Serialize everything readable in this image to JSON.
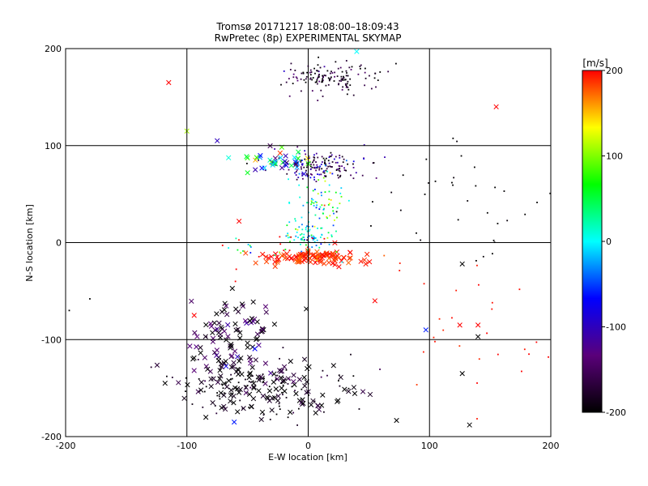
{
  "chart_data": {
    "type": "scatter",
    "title": "Tromsø 20171217 18:08:00–18:09:43",
    "subtitle": "RwPretec (8p) EXPERIMENTAL SKYMAP",
    "xlabel": "E-W location [km]",
    "ylabel": "N-S location [km]",
    "xlim": [
      -200,
      200
    ],
    "ylim": [
      -200,
      200
    ],
    "x_ticks": [
      "-200",
      "-100",
      "0",
      "100",
      "200"
    ],
    "y_ticks": [
      "-200",
      "-100",
      "0",
      "100",
      "200"
    ],
    "x_tick_values": [
      -200,
      -100,
      0,
      100,
      200
    ],
    "y_tick_values": [
      -200,
      -100,
      0,
      100,
      200
    ],
    "grid": true,
    "colorbar": {
      "label": "[m/s]",
      "min": -200,
      "max": 200,
      "ticks": [
        "200",
        "100",
        "0",
        "-100",
        "-200"
      ],
      "tick_values": [
        200,
        100,
        0,
        -100,
        -200
      ],
      "colors": [
        "#000000",
        "#5a007a",
        "#0000ff",
        "#00ffff",
        "#00ff00",
        "#ffff00",
        "#ff0000"
      ]
    },
    "markers": {
      "dot": "meteor detection (small)",
      "x": "meteor detection (large)"
    },
    "clusters": [
      {
        "cx": 15,
        "cy": 170,
        "sx": 22,
        "sy": 8,
        "n": 140,
        "v": -180,
        "vs": 30,
        "marker": "dot"
      },
      {
        "cx": 10,
        "cy": 78,
        "sx": 18,
        "sy": 7,
        "n": 160,
        "v": -150,
        "vs": 45,
        "marker": "dot"
      },
      {
        "cx": -20,
        "cy": 85,
        "sx": 18,
        "sy": 6,
        "n": 40,
        "v": -40,
        "vs": 80,
        "marker": "x"
      },
      {
        "cx": 10,
        "cy": 40,
        "sx": 12,
        "sy": 18,
        "n": 80,
        "v": 20,
        "vs": 60,
        "marker": "dot"
      },
      {
        "cx": 0,
        "cy": 5,
        "sx": 8,
        "sy": 10,
        "n": 60,
        "v": 0,
        "vs": 30,
        "marker": "dot"
      },
      {
        "cx": 5,
        "cy": -16,
        "sx": 22,
        "sy": 4,
        "n": 110,
        "v": 190,
        "vs": 10,
        "marker": "x"
      },
      {
        "cx": -25,
        "cy": -5,
        "sx": 30,
        "sy": 12,
        "n": 40,
        "v": 100,
        "vs": 110,
        "marker": "dot"
      },
      {
        "cx": -60,
        "cy": -100,
        "sx": 18,
        "sy": 25,
        "n": 110,
        "v": -170,
        "vs": 40,
        "marker": "x"
      },
      {
        "cx": -35,
        "cy": -150,
        "sx": 35,
        "sy": 15,
        "n": 120,
        "v": -190,
        "vs": 20,
        "marker": "x"
      },
      {
        "cx": -40,
        "cy": -150,
        "sx": 40,
        "sy": 15,
        "n": 90,
        "v": -190,
        "vs": 20,
        "marker": "dot"
      },
      {
        "cx": 120,
        "cy": 50,
        "sx": 50,
        "sy": 30,
        "n": 40,
        "v": -200,
        "vs": 5,
        "marker": "dot"
      },
      {
        "cx": 130,
        "cy": -80,
        "sx": 35,
        "sy": 35,
        "n": 25,
        "v": 195,
        "vs": 5,
        "marker": "dot"
      }
    ],
    "extra_points": [
      {
        "x": -115,
        "y": 165,
        "v": 200,
        "marker": "x"
      },
      {
        "x": 155,
        "y": 140,
        "v": 200,
        "marker": "x"
      },
      {
        "x": -100,
        "y": 115,
        "v": 110,
        "marker": "x"
      },
      {
        "x": -75,
        "y": 105,
        "v": -100,
        "marker": "x"
      },
      {
        "x": -50,
        "y": 72,
        "v": 60,
        "marker": "x"
      },
      {
        "x": -57,
        "y": 22,
        "v": 200,
        "marker": "x"
      },
      {
        "x": -94,
        "y": -75,
        "v": 200,
        "marker": "x"
      },
      {
        "x": 97,
        "y": -90,
        "v": -60,
        "marker": "x"
      },
      {
        "x": -61,
        "y": -185,
        "v": -60,
        "marker": "x"
      },
      {
        "x": -95,
        "y": -120,
        "v": -200,
        "marker": "x"
      },
      {
        "x": -118,
        "y": -145,
        "v": -200,
        "marker": "x"
      },
      {
        "x": 125,
        "y": -85,
        "v": 200,
        "marker": "x"
      },
      {
        "x": 140,
        "y": -85,
        "v": 200,
        "marker": "x"
      },
      {
        "x": 140,
        "y": -97,
        "v": -200,
        "marker": "x"
      },
      {
        "x": 127,
        "y": -135,
        "v": -200,
        "marker": "x"
      },
      {
        "x": 133,
        "y": -188,
        "v": -200,
        "marker": "x"
      },
      {
        "x": 127,
        "y": -22,
        "v": -200,
        "marker": "x"
      },
      {
        "x": 55,
        "y": -60,
        "v": 200,
        "marker": "x"
      },
      {
        "x": 40,
        "y": 197,
        "v": 0,
        "marker": "x"
      },
      {
        "x": -60,
        "y": -40,
        "v": 200,
        "marker": "dot"
      },
      {
        "x": -197,
        "y": -70,
        "v": -200,
        "marker": "dot"
      },
      {
        "x": -180,
        "y": -58,
        "v": -200,
        "marker": "dot"
      },
      {
        "x": 182,
        "y": -115,
        "v": 200,
        "marker": "dot"
      },
      {
        "x": 198,
        "y": -118,
        "v": 200,
        "marker": "dot"
      }
    ]
  }
}
